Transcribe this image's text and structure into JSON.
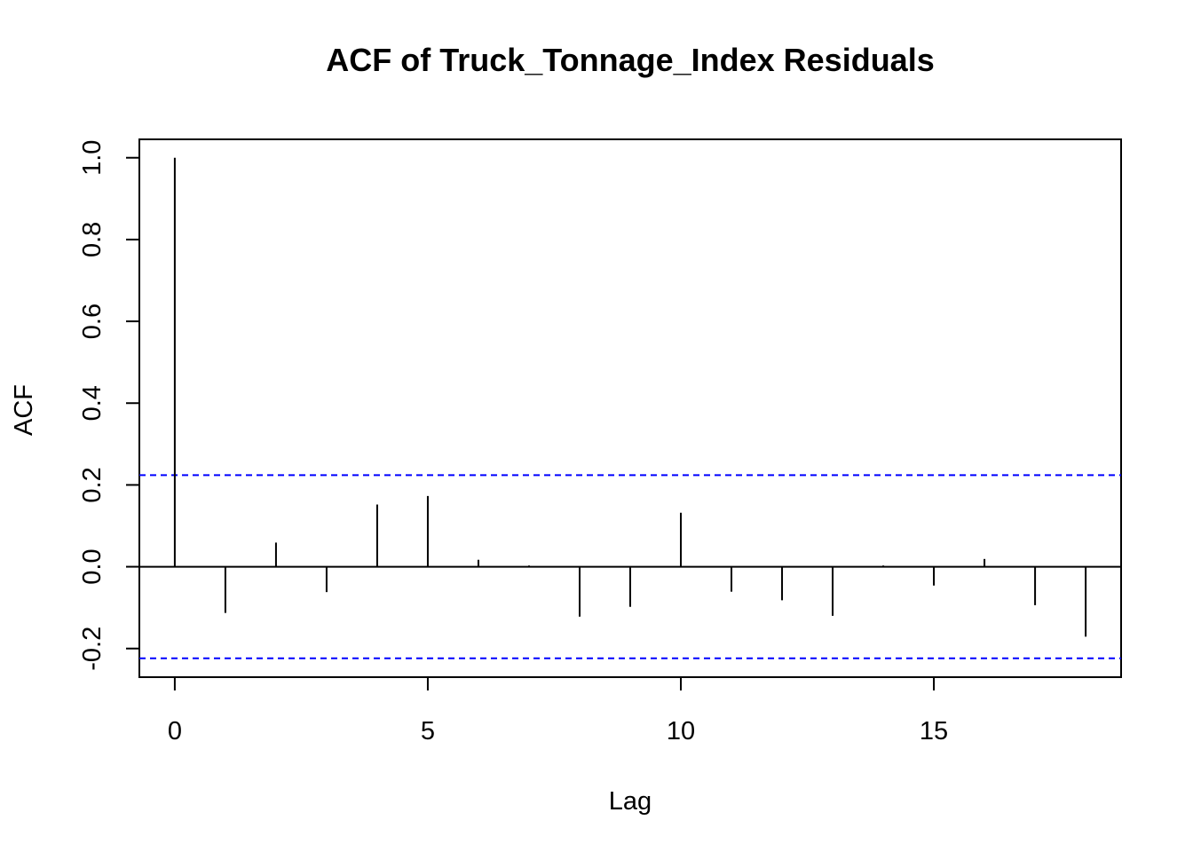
{
  "chart_data": {
    "type": "bar",
    "subtype": "acf-stem",
    "title": "ACF of Truck_Tonnage_Index Residuals",
    "xlabel": "Lag",
    "ylabel": "ACF",
    "x": [
      0,
      1,
      2,
      3,
      4,
      5,
      6,
      7,
      8,
      9,
      10,
      11,
      12,
      13,
      14,
      15,
      16,
      17,
      18
    ],
    "values": [
      1.0,
      -0.113,
      0.059,
      -0.062,
      0.152,
      0.173,
      0.017,
      0.003,
      -0.122,
      -0.098,
      0.132,
      -0.061,
      -0.082,
      -0.12,
      0.003,
      -0.046,
      0.019,
      -0.094,
      -0.171
    ],
    "xlim": [
      -0.7,
      18.7
    ],
    "ylim": [
      -0.27,
      1.045
    ],
    "xticks": [
      0,
      5,
      10,
      15
    ],
    "yticks": [
      -0.2,
      0.0,
      0.2,
      0.4,
      0.6,
      0.8,
      1.0
    ],
    "ytick_labels": [
      "-0.2",
      "0.0",
      "0.2",
      "0.4",
      "0.6",
      "0.8",
      "1.0"
    ],
    "confidence_bounds": [
      0.224,
      -0.224
    ],
    "confidence_color": "#0000ff",
    "bar_color": "#000000",
    "grid": false,
    "legend": "none"
  }
}
